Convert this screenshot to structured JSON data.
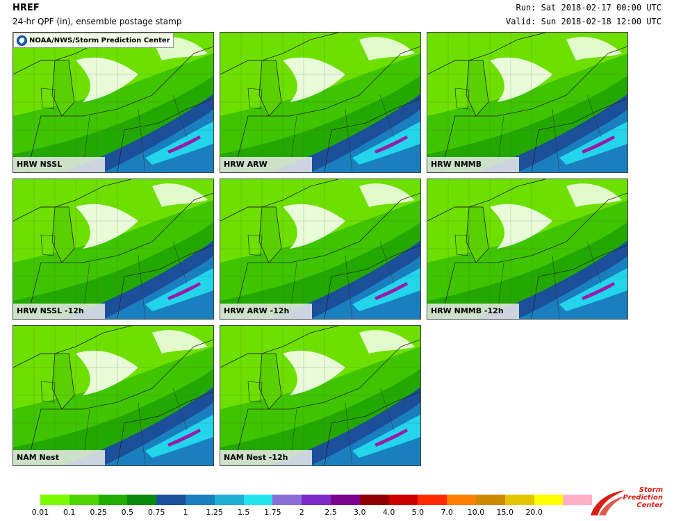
{
  "header": {
    "title": "HREF",
    "subtitle": "24-hr QPF (in), ensemble postage stamp",
    "run": "Run: Sat 2018-02-17 00:00 UTC",
    "valid": "Valid: Sun 2018-02-18 12:00 UTC"
  },
  "credit": "NOAA/NWS/Storm Prediction Center",
  "panels": [
    {
      "label": "HRW NSSL"
    },
    {
      "label": "HRW ARW"
    },
    {
      "label": "HRW NMMB"
    },
    {
      "label": "HRW NSSL -12h"
    },
    {
      "label": "HRW ARW -12h"
    },
    {
      "label": "HRW NMMB -12h"
    },
    {
      "label": "NAM Nest"
    },
    {
      "label": "NAM Nest -12h"
    }
  ],
  "colorbar": {
    "labels": [
      "0.01",
      "0.1",
      "0.25",
      "0.5",
      "0.75",
      "1",
      "1.25",
      "1.5",
      "1.75",
      "2",
      "2.5",
      "3.0",
      "4.0",
      "5.0",
      "7.0",
      "10.0",
      "15.0",
      "20.0"
    ],
    "colors": [
      "#7cfc00",
      "#4cd400",
      "#22ad00",
      "#0a8a0a",
      "#1b4f99",
      "#1a7fbf",
      "#21aed3",
      "#23e5ee",
      "#8a6ed6",
      "#7c2ac9",
      "#7b028e",
      "#8f0000",
      "#cc0000",
      "#ff2a00",
      "#ff7f00",
      "#cc8a00",
      "#e3c500",
      "#ffff00",
      "#ffb0c8"
    ]
  },
  "logo": {
    "spc_line1": "Storm",
    "spc_line2": "Prediction",
    "spc_line3": "Center"
  }
}
